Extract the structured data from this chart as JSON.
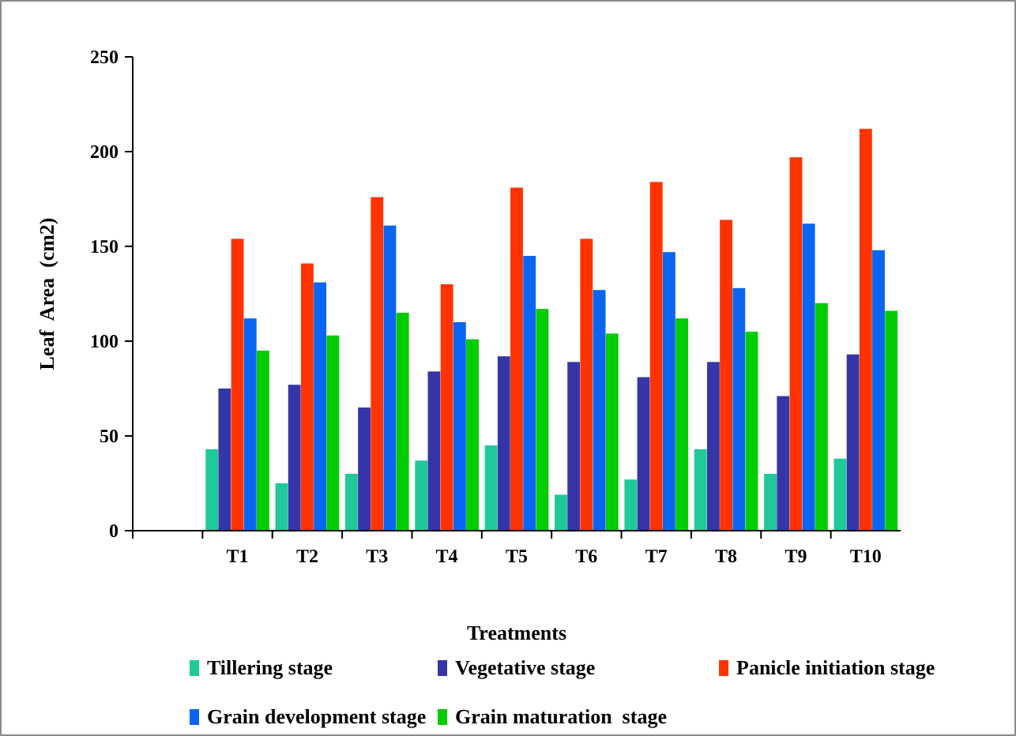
{
  "chart_data": {
    "type": "bar",
    "xlabel": "Treatments",
    "ylabel": "Leaf  Area  (cm2)",
    "categories": [
      null,
      "T1",
      "T2",
      "T3",
      "T4",
      "T5",
      "T6",
      "T7",
      "T8",
      "T9",
      "T10"
    ],
    "series": [
      {
        "name": "Tillering stage",
        "color": "#20c99a",
        "values": [
          null,
          43,
          25,
          30,
          37,
          45,
          19,
          27,
          43,
          30,
          38
        ]
      },
      {
        "name": "Vegetative stage",
        "color": "#3535a8",
        "values": [
          null,
          75,
          77,
          65,
          84,
          92,
          89,
          81,
          89,
          71,
          93
        ]
      },
      {
        "name": "Panicle initiation stage",
        "color": "#ff3300",
        "values": [
          null,
          154,
          141,
          176,
          130,
          181,
          154,
          184,
          164,
          197,
          212
        ]
      },
      {
        "name": "Grain development stage",
        "color": "#0a66f0",
        "values": [
          null,
          112,
          131,
          161,
          110,
          145,
          127,
          147,
          128,
          162,
          148
        ]
      },
      {
        "name": "Grain maturation  stage",
        "color": "#00cc00",
        "values": [
          null,
          95,
          103,
          115,
          101,
          117,
          104,
          112,
          105,
          120,
          116
        ]
      }
    ],
    "ylim": [
      0,
      250
    ],
    "yticks": [
      0,
      50,
      100,
      150,
      200,
      250
    ],
    "grid": false,
    "legend": "bottom"
  }
}
